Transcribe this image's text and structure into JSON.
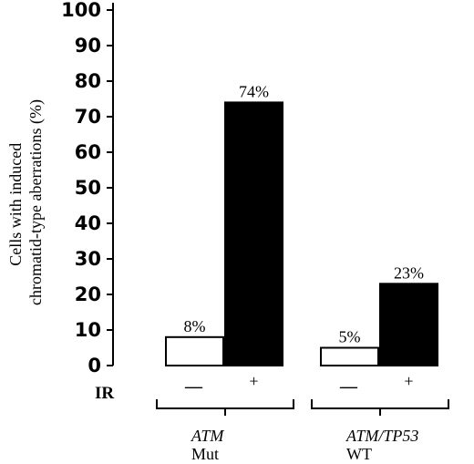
{
  "chart_data": {
    "type": "bar",
    "ylabel_line1": "Cells with induced",
    "ylabel_line2": "chromatid-type aberrations (%)",
    "ylim": [
      0,
      100
    ],
    "yticks": [
      "0",
      "10",
      "20",
      "30",
      "40",
      "50",
      "60",
      "70",
      "80",
      "90",
      "100"
    ],
    "treatment_label": "IR",
    "treatment_minus": "—",
    "treatment_plus": "+",
    "groups": [
      {
        "gene": "ATM",
        "status": "Mut",
        "bars": [
          {
            "ir": "-",
            "value": 8,
            "label": "8%",
            "fill": "#ffffff"
          },
          {
            "ir": "+",
            "value": 74,
            "label": "74%",
            "fill": "#000000"
          }
        ]
      },
      {
        "gene": "ATM/TP53",
        "status": "WT",
        "bars": [
          {
            "ir": "-",
            "value": 5,
            "label": "5%",
            "fill": "#ffffff"
          },
          {
            "ir": "+",
            "value": 23,
            "label": "23%",
            "fill": "#000000"
          }
        ]
      }
    ]
  }
}
